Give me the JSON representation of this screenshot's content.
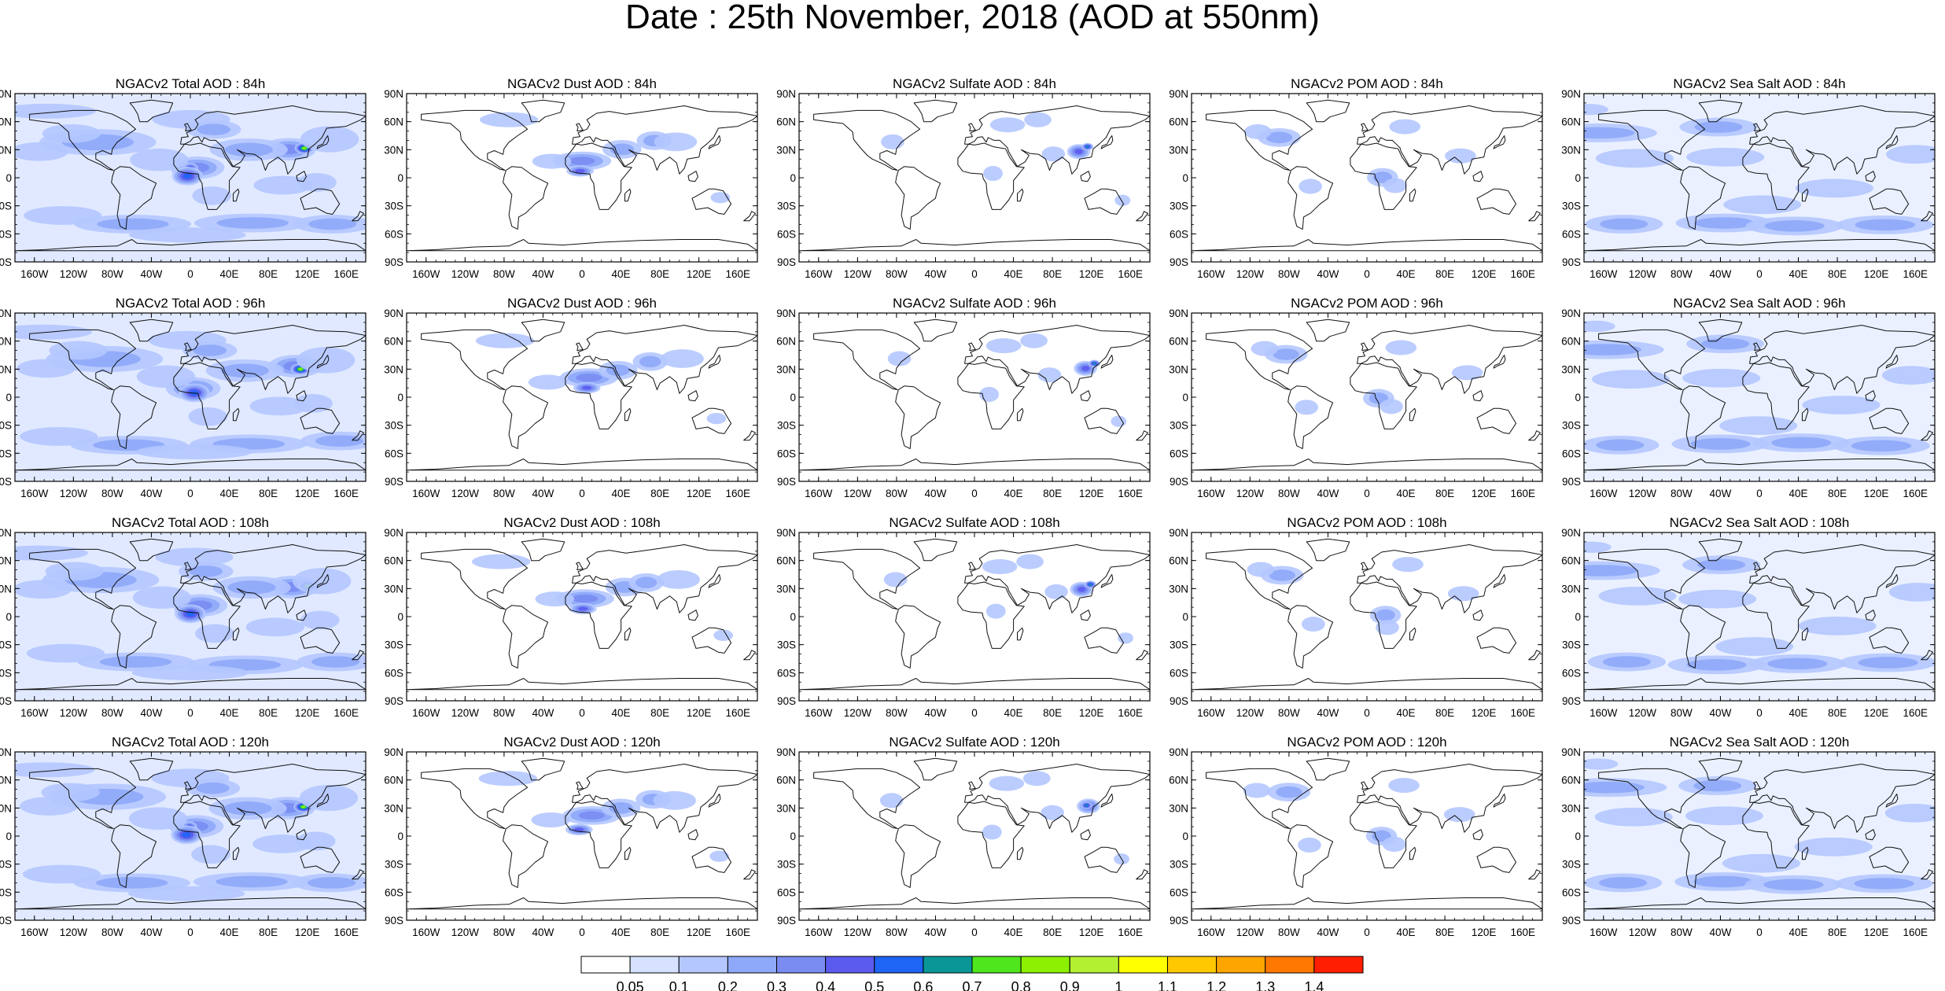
{
  "title": "Date : 25th November, 2018 (AOD at 550nm)",
  "panels": [
    [
      "NGACv2 Total AOD : 84h",
      "NGACv2 Dust AOD : 84h",
      "NGACv2 Sulfate AOD : 84h",
      "NGACv2 POM AOD : 84h",
      "NGACv2 Sea Salt AOD : 84h"
    ],
    [
      "NGACv2 Total AOD : 96h",
      "NGACv2 Dust AOD : 96h",
      "NGACv2 Sulfate AOD : 96h",
      "NGACv2 POM AOD : 96h",
      "NGACv2 Sea Salt AOD : 96h"
    ],
    [
      "NGACv2 Total AOD : 108h",
      "NGACv2 Dust AOD : 108h",
      "NGACv2 Sulfate AOD : 108h",
      "NGACv2 POM AOD : 108h",
      "NGACv2 Sea Salt AOD : 108h"
    ],
    [
      "NGACv2 Total AOD : 120h",
      "NGACv2 Dust AOD : 120h",
      "NGACv2 Sulfate AOD : 120h",
      "NGACv2 POM AOD : 120h",
      "NGACv2 Sea Salt  AOD : 120h"
    ]
  ],
  "lat_ticks": [
    "90N",
    "60N",
    "30N",
    "0",
    "30S",
    "60S",
    "90S"
  ],
  "lon_ticks": [
    "160W",
    "120W",
    "80W",
    "40W",
    "0",
    "40E",
    "80E",
    "120E",
    "160E"
  ],
  "colorbar": {
    "colors": [
      "#ffffff",
      "#d6e2ff",
      "#b4c7ff",
      "#8ea8fa",
      "#7a8cf2",
      "#5b5bf0",
      "#1e64f5",
      "#0a9696",
      "#50e61e",
      "#8cf000",
      "#b4f032",
      "#ffff00",
      "#ffc800",
      "#ffa500",
      "#ff7800",
      "#ff1e00"
    ],
    "labels": [
      "0.05",
      "0.1",
      "0.2",
      "0.3",
      "0.4",
      "0.5",
      "0.6",
      "0.7",
      "0.8",
      "0.9",
      "1",
      "1.1",
      "1.2",
      "1.3",
      "1.4"
    ]
  }
}
